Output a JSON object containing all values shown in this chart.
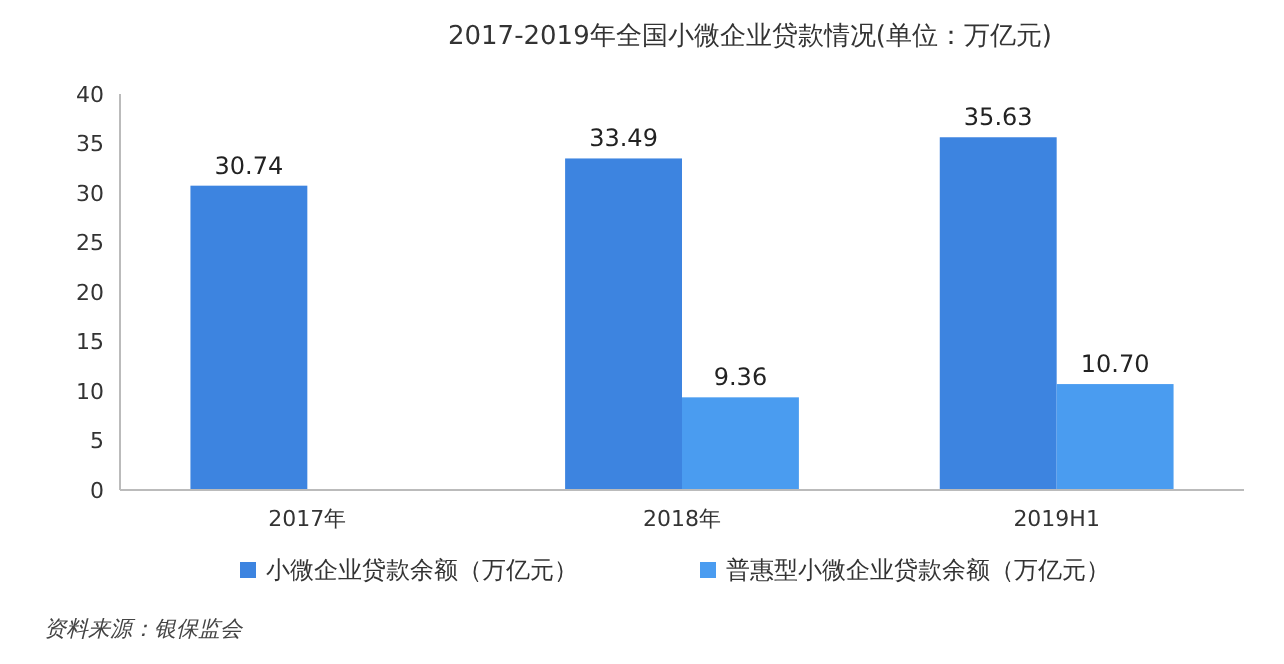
{
  "chart_data": {
    "type": "bar",
    "title": "2017-2019年全国小微企业贷款情况(单位：万亿元)",
    "categories": [
      "2017年",
      "2018年",
      "2019H1"
    ],
    "series": [
      {
        "name": "小微企业贷款余额（万亿元）",
        "color": "#3d84e0",
        "values": [
          30.74,
          33.49,
          35.63
        ]
      },
      {
        "name": "普惠型小微企业贷款余额（万亿元）",
        "color": "#4a9cf0",
        "values": [
          null,
          9.36,
          10.7
        ]
      }
    ],
    "value_labels": [
      [
        "30.74",
        "33.49",
        "35.63"
      ],
      [
        null,
        "9.36",
        "10.70"
      ]
    ],
    "ylim": [
      0,
      40
    ],
    "yticks": [
      0,
      5,
      10,
      15,
      20,
      25,
      30,
      35,
      40
    ],
    "grid": false,
    "legend": "bottom",
    "annotations": [
      "资料来源：银保监会"
    ]
  }
}
